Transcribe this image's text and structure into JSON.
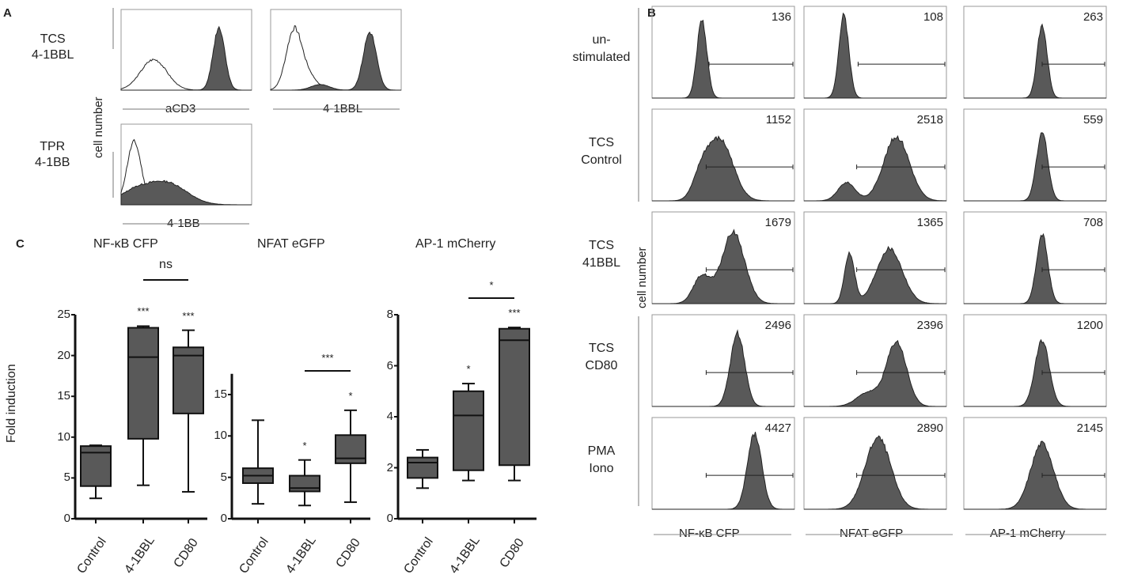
{
  "panel_labels": {
    "a": "A",
    "b": "B",
    "c": "C"
  },
  "panel_a": {
    "ylabel": "cell number",
    "rows": [
      {
        "line1": "TCS",
        "line2": "4-1BBL"
      },
      {
        "line1": "TPR",
        "line2": "4-1BB"
      }
    ],
    "xlabels": [
      "aCD3",
      "4-1BBL",
      "4-1BB"
    ]
  },
  "panel_b": {
    "ylabel": "cell number",
    "rows": [
      {
        "line1": "un-",
        "line2": "stimulated"
      },
      {
        "line1": "TCS",
        "line2": "Control"
      },
      {
        "line1": "TCS",
        "line2": "41BBL"
      },
      {
        "line1": "TCS",
        "line2": "CD80"
      },
      {
        "line1": "PMA",
        "line2": "Iono"
      }
    ],
    "columns": [
      "NF-κB CFP",
      "NFAT eGFP",
      "AP-1 mCherry"
    ],
    "mfi": [
      [
        "136",
        "108",
        "263"
      ],
      [
        "1152",
        "2518",
        "559"
      ],
      [
        "1679",
        "1365",
        "708"
      ],
      [
        "2496",
        "2396",
        "1200"
      ],
      [
        "4427",
        "2890",
        "2145"
      ]
    ]
  },
  "chart_data": [
    {
      "type": "box",
      "title": "NF-κB CFP",
      "ylabel": "Fold induction",
      "ylim": [
        0,
        25
      ],
      "yticks": [
        0,
        5,
        10,
        15,
        20,
        25
      ],
      "categories": [
        "Control",
        "4-1BBL",
        "CD80"
      ],
      "boxes": [
        {
          "min": 2.5,
          "q1": 4,
          "median": 8.1,
          "q3": 8.9,
          "max": 9
        },
        {
          "min": 4.1,
          "q1": 9.8,
          "median": 19.8,
          "q3": 23.4,
          "max": 23.6
        },
        {
          "min": 3.3,
          "q1": 12.9,
          "median": 20,
          "q3": 21,
          "max": 23.1
        }
      ],
      "stars": [
        "",
        "***",
        "***"
      ],
      "bracket": {
        "from": 1,
        "to": 2,
        "label": "ns"
      }
    },
    {
      "type": "box",
      "title": "NFAT eGFP",
      "ylabel": "",
      "ylim": [
        0,
        17.5
      ],
      "yticks": [
        0,
        5,
        10,
        15
      ],
      "categories": [
        "Control",
        "4-1BBL",
        "CD80"
      ],
      "boxes": [
        {
          "min": 1.8,
          "q1": 4.3,
          "median": 5.2,
          "q3": 6.1,
          "max": 11.9
        },
        {
          "min": 1.6,
          "q1": 3.3,
          "median": 3.7,
          "q3": 5.2,
          "max": 7.1
        },
        {
          "min": 2.0,
          "q1": 6.7,
          "median": 7.3,
          "q3": 10.1,
          "max": 13.1
        }
      ],
      "stars": [
        "",
        "*",
        "*"
      ],
      "bracket": {
        "from": 1,
        "to": 2,
        "label": "***"
      }
    },
    {
      "type": "box",
      "title": "AP-1 mCherry",
      "ylabel": "",
      "ylim": [
        0,
        8
      ],
      "yticks": [
        0,
        2,
        4,
        6,
        8
      ],
      "categories": [
        "Control",
        "4-1BBL",
        "CD80"
      ],
      "boxes": [
        {
          "min": 1.2,
          "q1": 1.6,
          "median": 2.2,
          "q3": 2.4,
          "max": 2.7
        },
        {
          "min": 1.5,
          "q1": 1.9,
          "median": 4.05,
          "q3": 5.0,
          "max": 5.3
        },
        {
          "min": 1.5,
          "q1": 2.1,
          "median": 7.0,
          "q3": 7.45,
          "max": 7.5
        }
      ],
      "stars": [
        "",
        "*",
        "***"
      ],
      "bracket": {
        "from": 1,
        "to": 2,
        "label": "*"
      }
    }
  ],
  "colors": {
    "fill": "#595959",
    "line": "#111111",
    "frame": "#999999"
  }
}
